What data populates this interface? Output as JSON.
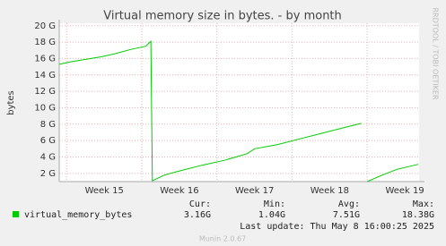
{
  "chart_data": {
    "type": "line",
    "title": "Virtual memory size in bytes. - by month",
    "y_label": "bytes",
    "side_label": "RRDTOOL / TOBI OETIKER",
    "x": [
      14.4,
      14.55,
      14.75,
      14.95,
      15.15,
      15.35,
      15.55,
      15.62,
      15.64,
      15.8,
      16.0,
      16.3,
      16.6,
      16.9,
      17.0,
      17.3,
      17.6,
      17.9,
      18.2,
      18.42,
      18.46,
      18.5,
      18.7,
      18.9,
      19.18
    ],
    "series": [
      {
        "name": "virtual_memory_bytes",
        "color": "#00cc00",
        "values": [
          15.3,
          15.6,
          15.9,
          16.2,
          16.6,
          17.1,
          17.5,
          18.1,
          1.1,
          1.8,
          2.3,
          3.0,
          3.6,
          4.4,
          5.0,
          5.5,
          6.2,
          6.9,
          7.6,
          8.1,
          null,
          1.0,
          1.8,
          2.5,
          3.1
        ]
      }
    ],
    "xlim": [
      14.4,
      19.19
    ],
    "xticks": [
      {
        "value": 15,
        "label": "Week 15"
      },
      {
        "value": 16,
        "label": "Week 16"
      },
      {
        "value": 17,
        "label": "Week 17"
      },
      {
        "value": 18,
        "label": "Week 18"
      },
      {
        "value": 19,
        "label": "Week 19"
      }
    ],
    "ylim": [
      1,
      20.3
    ],
    "yticks": [
      {
        "value": 2,
        "label": "2 G"
      },
      {
        "value": 4,
        "label": "4 G"
      },
      {
        "value": 6,
        "label": "6 G"
      },
      {
        "value": 8,
        "label": "8 G"
      },
      {
        "value": 10,
        "label": "10 G"
      },
      {
        "value": 12,
        "label": "12 G"
      },
      {
        "value": 14,
        "label": "14 G"
      },
      {
        "value": 16,
        "label": "16 G"
      },
      {
        "value": 18,
        "label": "18 G"
      },
      {
        "value": 20,
        "label": "20 G"
      }
    ],
    "grid": true,
    "stat_headers": [
      "Cur:",
      "Min:",
      "Avg:",
      "Max:"
    ],
    "stats": [
      "3.16G",
      "1.04G",
      "7.51G",
      "18.38G"
    ],
    "last_update": "Last update: Thu May  8 16:00:25 2025",
    "footer": "Munin 2.0.67"
  }
}
